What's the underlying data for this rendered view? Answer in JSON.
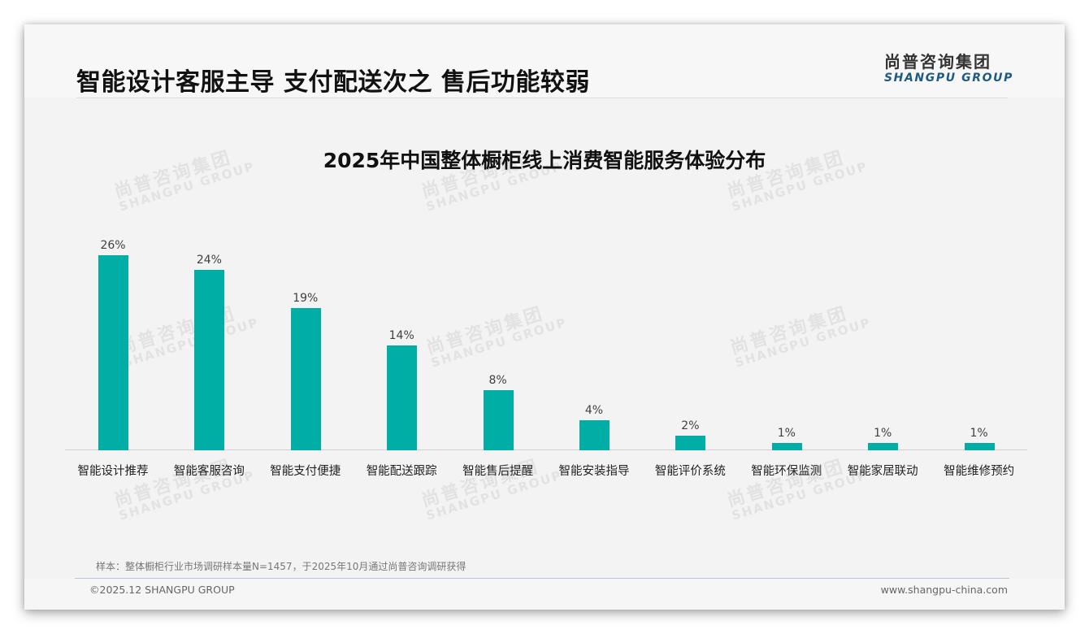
{
  "header": {
    "title": "智能设计客服主导 支付配送次之 售后功能较弱",
    "logo_cn": "尚普咨询集团",
    "logo_en": "SHANGPU GROUP"
  },
  "watermark": {
    "cn": "尚普咨询集团",
    "en": "SHANGPU GROUP"
  },
  "colors": {
    "bar": "#00aea6",
    "logo_en": "#1f5a86",
    "background": "#f3f3f3"
  },
  "chart_data": {
    "type": "bar",
    "title": "2025年中国整体橱柜线上消费智能服务体验分布",
    "categories": [
      "智能设计推荐",
      "智能客服咨询",
      "智能支付便捷",
      "智能配送跟踪",
      "智能售后提醒",
      "智能安装指导",
      "智能评价系统",
      "智能环保监测",
      "智能家居联动",
      "智能维修预约"
    ],
    "values": [
      26,
      24,
      19,
      14,
      8,
      4,
      2,
      1,
      1,
      1
    ],
    "value_labels": [
      "26%",
      "24%",
      "19%",
      "14%",
      "8%",
      "4%",
      "2%",
      "1%",
      "1%",
      "1%"
    ],
    "unit": "%",
    "xlabel": "",
    "ylabel": "",
    "ylim": [
      0,
      30
    ],
    "grid": false,
    "legend": false,
    "data_labels": "above bars"
  },
  "footer": {
    "note": "样本：整体橱柜行业市场调研样本量N=1457，于2025年10月通过尚普咨询调研获得",
    "copyright": "©2025.12 SHANGPU GROUP",
    "website": "www.shangpu-china.com"
  }
}
